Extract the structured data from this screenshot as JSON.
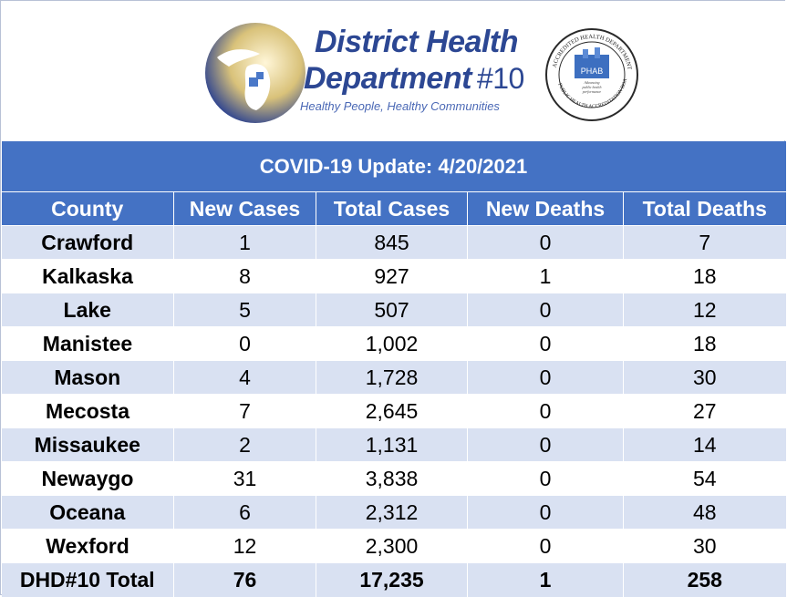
{
  "logo": {
    "title_line1": "District Health",
    "title_line2": "Department",
    "title_number": "#10",
    "tagline": "Healthy People, Healthy Communities",
    "seal_text": "ACCREDITED HEALTH DEPARTMENT · PUBLIC HEALTH ACCREDITATION BOARD",
    "seal_abbrev": "PHAB"
  },
  "table": {
    "title": "COVID-19 Update: 4/20/2021",
    "columns": [
      "County",
      "New Cases",
      "Total Cases",
      "New Deaths",
      "Total Deaths"
    ],
    "rows": [
      [
        "Crawford",
        "1",
        "845",
        "0",
        "7"
      ],
      [
        "Kalkaska",
        "8",
        "927",
        "1",
        "18"
      ],
      [
        "Lake",
        "5",
        "507",
        "0",
        "12"
      ],
      [
        "Manistee",
        "0",
        "1,002",
        "0",
        "18"
      ],
      [
        "Mason",
        "4",
        "1,728",
        "0",
        "30"
      ],
      [
        "Mecosta",
        "7",
        "2,645",
        "0",
        "27"
      ],
      [
        "Missaukee",
        "2",
        "1,131",
        "0",
        "14"
      ],
      [
        "Newaygo",
        "31",
        "3,838",
        "0",
        "54"
      ],
      [
        "Oceana",
        "6",
        "2,312",
        "0",
        "48"
      ],
      [
        "Wexford",
        "12",
        "2,300",
        "0",
        "30"
      ]
    ],
    "total": [
      "DHD#10 Total",
      "76",
      "17,235",
      "1",
      "258"
    ]
  },
  "colors": {
    "header_blue": "#4472c4",
    "band_light": "#d9e1f2",
    "logo_blue": "#2c4793",
    "logo_gold": "#c9a74a"
  }
}
